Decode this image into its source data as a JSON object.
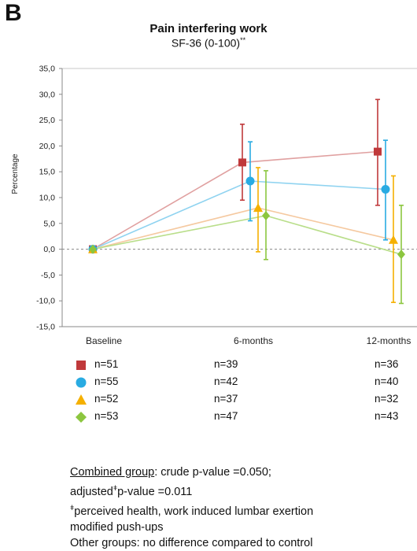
{
  "panel_label": "B",
  "notes": {
    "combined_label": "Combined group",
    "combined_text": ": crude p-value =0.050;",
    "adjusted_prefix": "adjusted",
    "adjusted_mark": "ǂ",
    "adjusted_text": "p-value =0.011",
    "footnote_mark": "ǂ",
    "footnote_text": "perceived health, work induced lumbar exertion",
    "footnote_text2": "modified push-ups",
    "other_groups": "Other groups: no difference compared to control"
  },
  "chart_data": {
    "type": "line",
    "title": "Pain interfering work",
    "subtitle": "SF-36  (0-100)",
    "subtitle_mark": "**",
    "xlabel": "",
    "ylabel": "Percentage",
    "categories": [
      "Baseline",
      "6-months",
      "12-months"
    ],
    "ylim": [
      -15,
      35
    ],
    "yticks": [
      "35,0",
      "30,0",
      "25,0",
      "20,0",
      "15,0",
      "10,0",
      "5,0",
      "0,0",
      "-5,0",
      "-10,0",
      "-15,0"
    ],
    "grid": false,
    "series": [
      {
        "color": "#c0393b",
        "line_color": "#e0a0a0",
        "marker": "square",
        "values": [
          0,
          16.8,
          18.9
        ],
        "err_low": [
          0,
          9.5,
          8.5
        ],
        "err_high": [
          0,
          24.2,
          29.0
        ],
        "n": [
          "n=51",
          "n=39",
          "n=36"
        ]
      },
      {
        "color": "#29abe2",
        "line_color": "#8fd3f0",
        "marker": "circle",
        "values": [
          0,
          13.2,
          11.6
        ],
        "err_low": [
          0,
          5.5,
          1.8
        ],
        "err_high": [
          0,
          20.8,
          21.1
        ],
        "n": [
          "n=55",
          "n=42",
          "n=40"
        ]
      },
      {
        "color": "#f5b000",
        "line_color": "#f5c9a0",
        "marker": "triangle",
        "values": [
          0,
          8.0,
          1.8
        ],
        "err_low": [
          0,
          -0.5,
          -10.3
        ],
        "err_high": [
          0,
          15.8,
          14.2
        ],
        "n": [
          "n=52",
          "n=37",
          "n=32"
        ]
      },
      {
        "color": "#8cc63f",
        "line_color": "#b9de8a",
        "marker": "diamond",
        "values": [
          0,
          6.5,
          -1.0
        ],
        "err_low": [
          0,
          -2.0,
          -10.5
        ],
        "err_high": [
          0,
          15.2,
          8.5
        ],
        "n": [
          "n=53",
          "n=47",
          "n=43"
        ]
      }
    ]
  }
}
